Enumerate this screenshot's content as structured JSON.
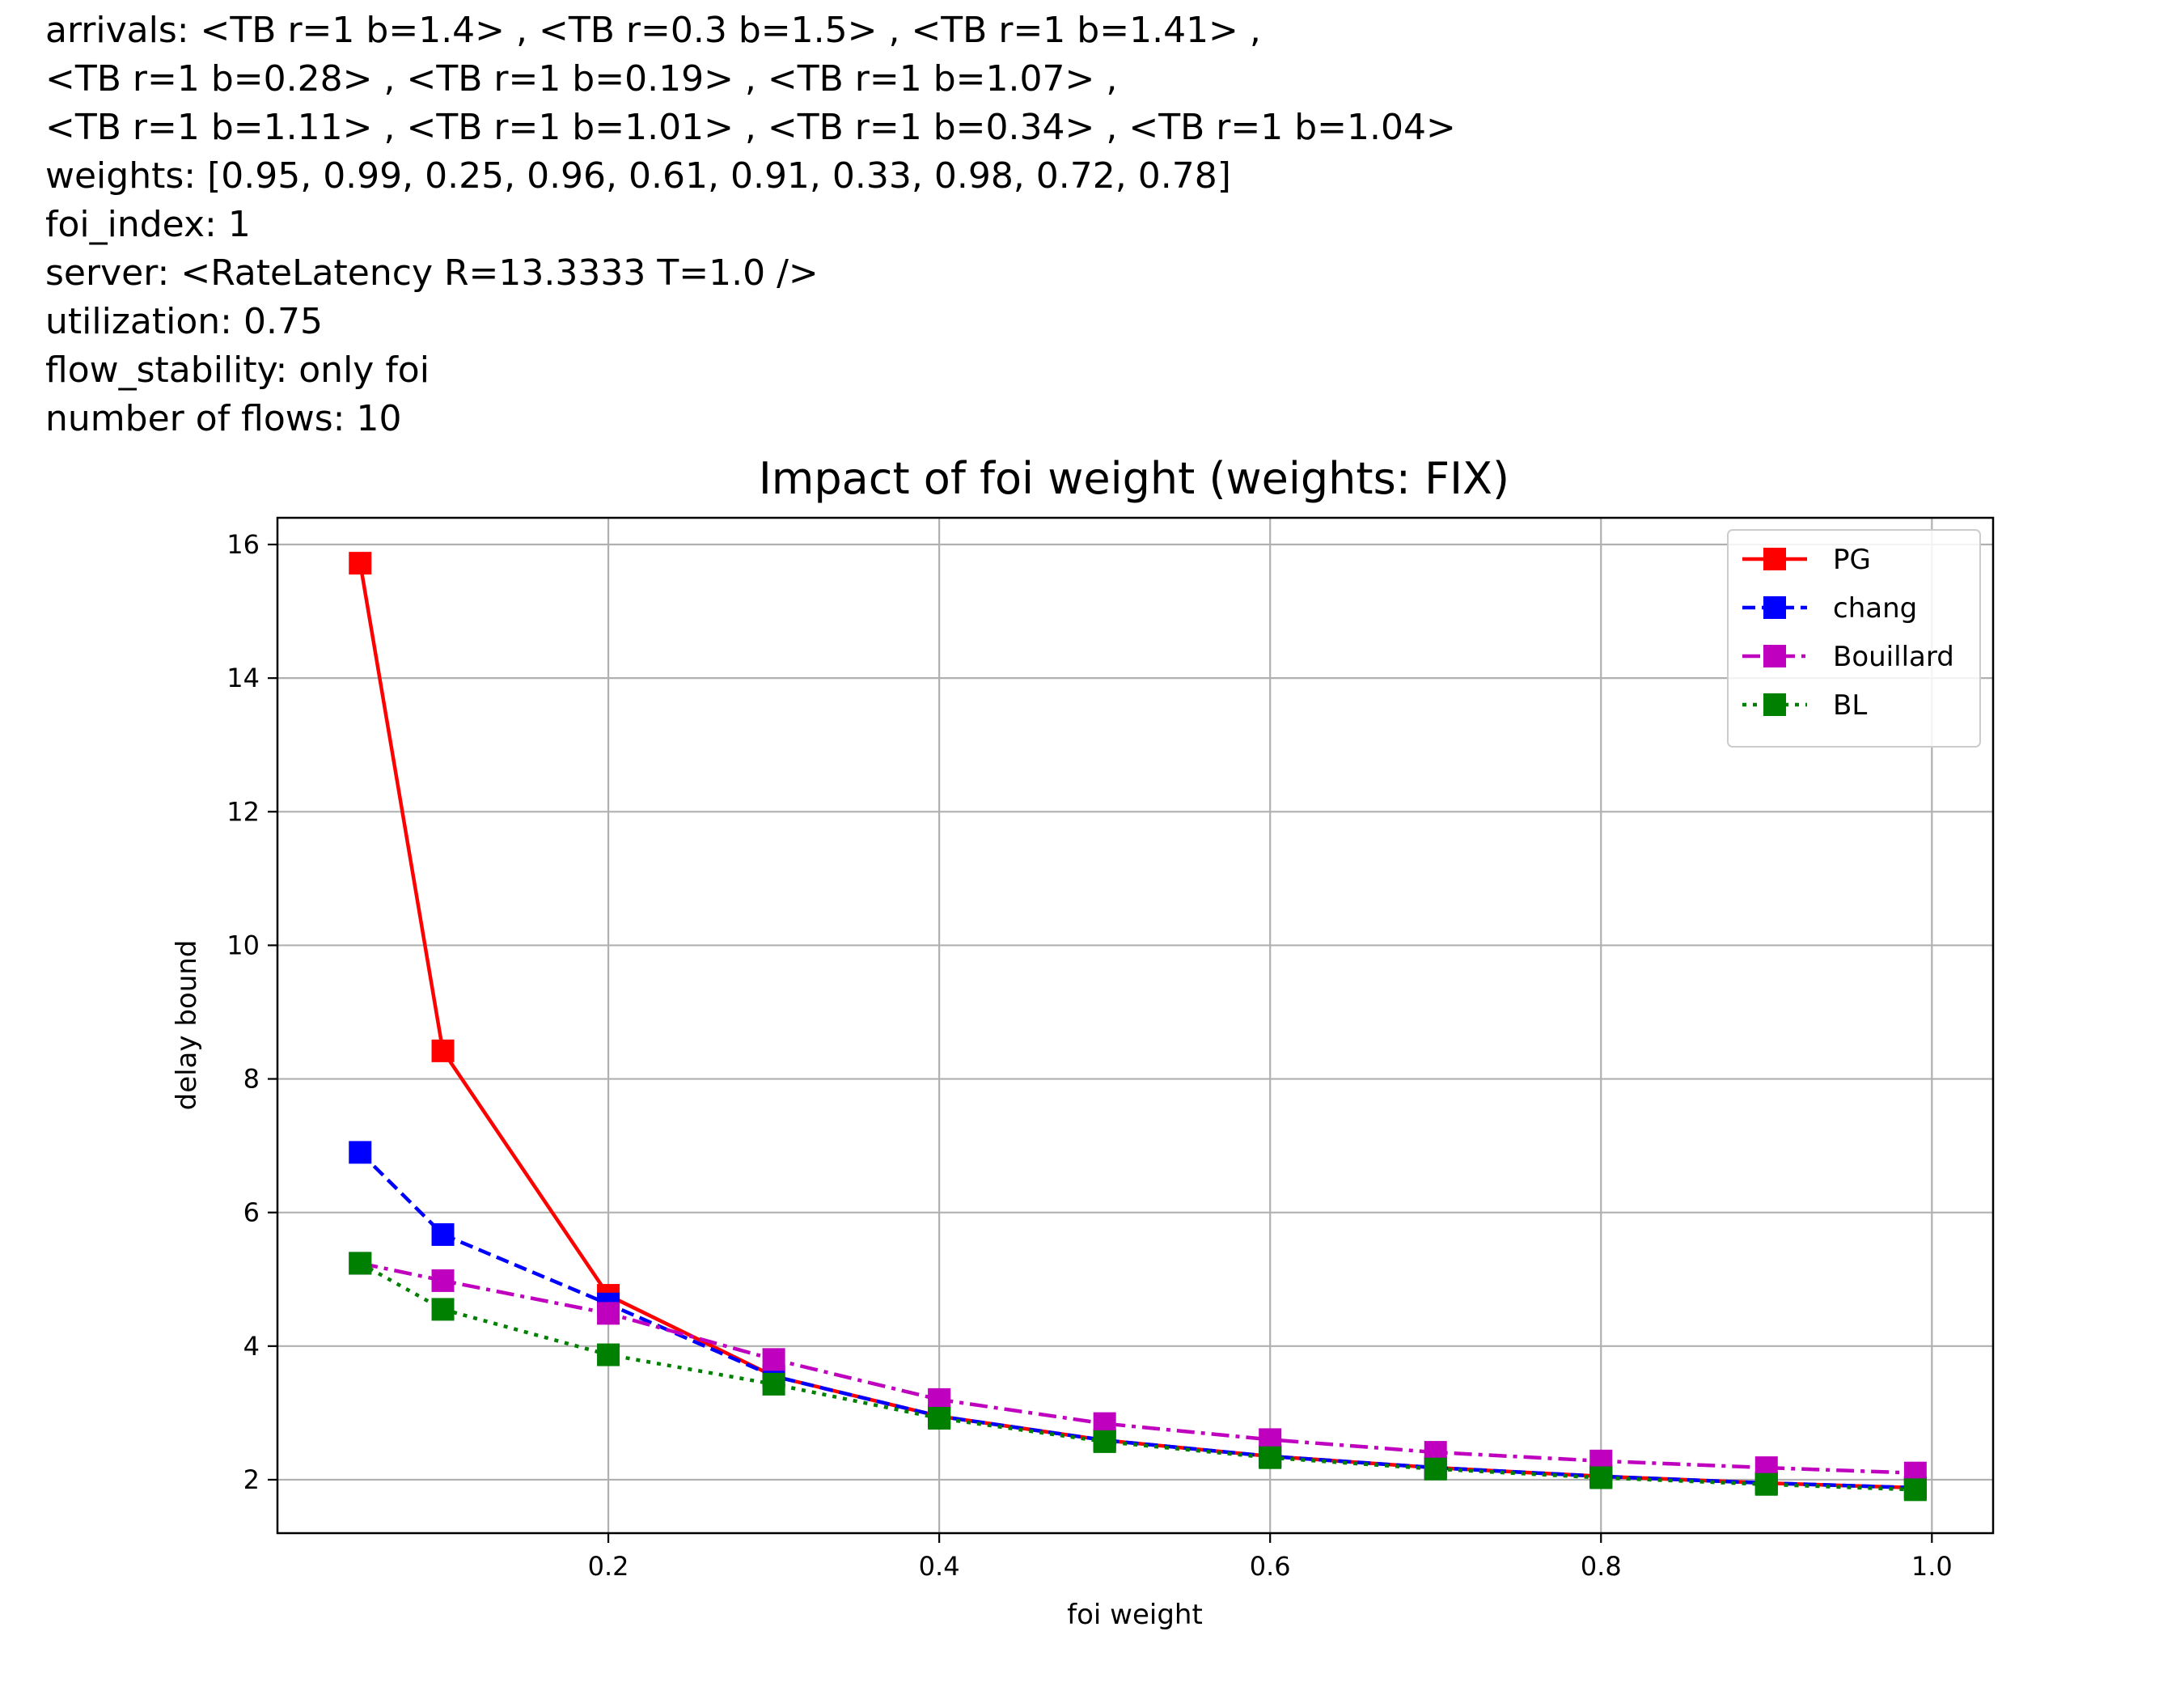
{
  "header": {
    "lines": [
      "arrivals: <TB r=1 b=1.4> , <TB r=0.3 b=1.5> , <TB r=1 b=1.41> ,",
      "<TB r=1 b=0.28> , <TB r=1 b=0.19> , <TB r=1 b=1.07> ,",
      "<TB r=1 b=1.11> , <TB r=1 b=1.01> , <TB r=1 b=0.34> , <TB r=1 b=1.04>",
      "weights: [0.95, 0.99, 0.25, 0.96, 0.61, 0.91, 0.33, 0.98, 0.72, 0.78]",
      "foi_index: 1",
      "server: <RateLatency R=13.3333 T=1.0 />",
      "utilization: 0.75",
      "flow_stability: only foi",
      "number of flows: 10"
    ]
  },
  "chart_data": {
    "type": "line",
    "title": "Impact of foi weight (weights: FIX)",
    "xlabel": "foi weight",
    "ylabel": "delay bound",
    "xlim": [
      0.0,
      1.037
    ],
    "ylim": [
      1.2,
      16.4
    ],
    "xticks": [
      0.2,
      0.4,
      0.6,
      0.8,
      1.0
    ],
    "xtick_labels": [
      "0.2",
      "0.4",
      "0.6",
      "0.8",
      "1.0"
    ],
    "yticks": [
      2,
      4,
      6,
      8,
      10,
      12,
      14,
      16
    ],
    "ytick_labels": [
      "2",
      "4",
      "6",
      "8",
      "10",
      "12",
      "14",
      "16"
    ],
    "grid": true,
    "legend_position": "top-right",
    "x": [
      0.05,
      0.1,
      0.2,
      0.3,
      0.4,
      0.5,
      0.6,
      0.7,
      0.8,
      0.9,
      0.99
    ],
    "series": [
      {
        "name": "PG",
        "color": "#ff0000",
        "linestyle": "solid",
        "values": [
          15.72,
          8.42,
          4.76,
          3.55,
          2.95,
          2.59,
          2.35,
          2.18,
          2.05,
          1.95,
          1.88
        ]
      },
      {
        "name": "chang",
        "color": "#0000ff",
        "linestyle": "dashed",
        "values": [
          6.9,
          5.67,
          4.63,
          3.55,
          2.95,
          2.59,
          2.35,
          2.18,
          2.05,
          1.95,
          1.88
        ]
      },
      {
        "name": "Bouillard",
        "color": "#bf00bf",
        "linestyle": "dashdot",
        "values": [
          5.24,
          4.98,
          4.49,
          3.8,
          3.2,
          2.84,
          2.6,
          2.41,
          2.28,
          2.18,
          2.1
        ]
      },
      {
        "name": "BL",
        "color": "#008000",
        "linestyle": "dotted",
        "values": [
          5.24,
          4.55,
          3.87,
          3.43,
          2.92,
          2.57,
          2.33,
          2.16,
          2.03,
          1.93,
          1.85
        ]
      }
    ]
  }
}
